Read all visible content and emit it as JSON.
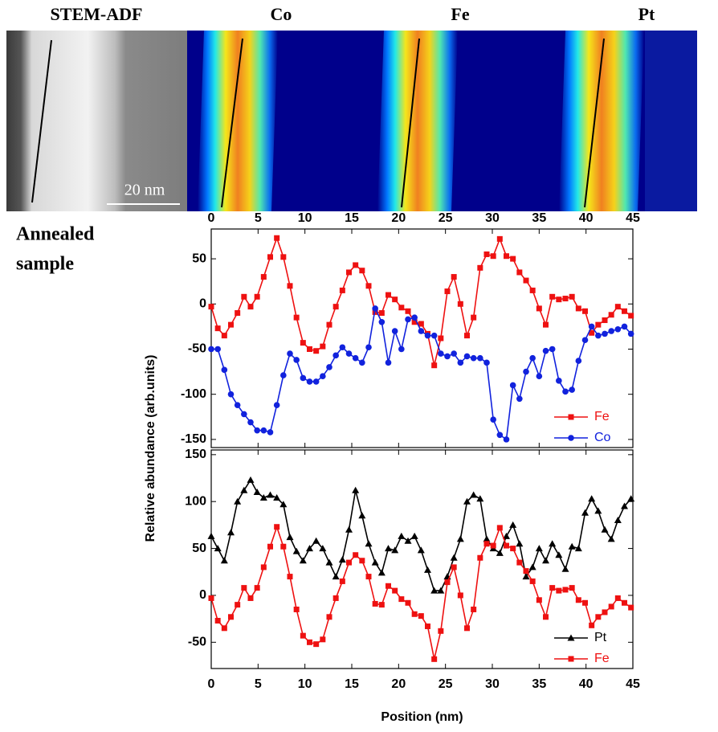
{
  "images": {
    "labels": [
      "STEM-ADF",
      "Co",
      "Fe",
      "Pt"
    ],
    "scale_bar": "20 nm",
    "sample_label": [
      "Annealed",
      "sample"
    ]
  },
  "chart_data": [
    {
      "type": "line",
      "ylabel": "Relative abundance (arb.units)",
      "x": [
        0,
        0.7,
        1.4,
        2.1,
        2.8,
        3.5,
        4.2,
        4.9,
        5.6,
        6.3,
        7,
        7.7,
        8.4,
        9.1,
        9.8,
        10.5,
        11.2,
        11.9,
        12.6,
        13.3,
        14,
        14.7,
        15.4,
        16.1,
        16.8,
        17.5,
        18.2,
        18.9,
        19.6,
        20.3,
        21,
        21.7,
        22.4,
        23.1,
        23.8,
        24.5,
        25.2,
        25.9,
        26.6,
        27.3,
        28,
        28.7,
        29.4,
        30.1,
        30.8,
        31.5,
        32.2,
        32.9,
        33.6,
        34.3,
        35,
        35.7,
        36.4,
        37.1,
        37.8,
        38.5,
        39.2,
        39.9,
        40.6,
        41.3,
        42,
        42.7,
        43.4,
        44.1,
        44.8
      ],
      "series": [
        {
          "name": "Fe",
          "color": "#ee1111",
          "marker": "square",
          "values": [
            -3,
            -27,
            -35,
            -23,
            -10,
            8,
            -3,
            8,
            30,
            52,
            73,
            52,
            20,
            -15,
            -43,
            -50,
            -52,
            -47,
            -23,
            -3,
            15,
            35,
            43,
            37,
            20,
            -9,
            -10,
            10,
            5,
            -4,
            -8,
            -20,
            -22,
            -33,
            -68,
            -38,
            14,
            30,
            0,
            -35,
            -15,
            40,
            55,
            53,
            72,
            53,
            50,
            35,
            26,
            15,
            -5,
            -23,
            8,
            5,
            6,
            8,
            -5,
            -8,
            -32,
            -23,
            -18,
            -12,
            -3,
            -8,
            -13
          ]
        },
        {
          "name": "Co",
          "color": "#1122dd",
          "marker": "circle",
          "values": [
            -50,
            -50,
            -73,
            -100,
            -112,
            -122,
            -131,
            -140,
            -140,
            -142,
            -112,
            -79,
            -55,
            -62,
            -82,
            -86,
            -86,
            -80,
            -70,
            -57,
            -48,
            -55,
            -60,
            -65,
            -48,
            -5,
            -20,
            -65,
            -30,
            -50,
            -17,
            -15,
            -30,
            -35,
            -35,
            -55,
            -58,
            -55,
            -65,
            -58,
            -60,
            -60,
            -65,
            -128,
            -145,
            -150,
            -90,
            -105,
            -75,
            -60,
            -80,
            -52,
            -50,
            -85,
            -97,
            -95,
            -63,
            -40,
            -25,
            -35,
            -33,
            -30,
            -28,
            -25,
            -33
          ]
        }
      ],
      "xlim": [
        0,
        45
      ],
      "xticks": [
        0,
        5,
        10,
        15,
        20,
        25,
        30,
        35,
        40,
        45
      ],
      "xtick_labels": "top",
      "ylim": [
        -159,
        83
      ],
      "yticks": [
        -150,
        -100,
        -50,
        0,
        50
      ],
      "legend": "lower right"
    },
    {
      "type": "line",
      "xlabel": "Position (nm)",
      "x": [
        0,
        0.7,
        1.4,
        2.1,
        2.8,
        3.5,
        4.2,
        4.9,
        5.6,
        6.3,
        7,
        7.7,
        8.4,
        9.1,
        9.8,
        10.5,
        11.2,
        11.9,
        12.6,
        13.3,
        14,
        14.7,
        15.4,
        16.1,
        16.8,
        17.5,
        18.2,
        18.9,
        19.6,
        20.3,
        21,
        21.7,
        22.4,
        23.1,
        23.8,
        24.5,
        25.2,
        25.9,
        26.6,
        27.3,
        28,
        28.7,
        29.4,
        30.1,
        30.8,
        31.5,
        32.2,
        32.9,
        33.6,
        34.3,
        35,
        35.7,
        36.4,
        37.1,
        37.8,
        38.5,
        39.2,
        39.9,
        40.6,
        41.3,
        42,
        42.7,
        43.4,
        44.1,
        44.8
      ],
      "series": [
        {
          "name": "Pt",
          "color": "#000000",
          "marker": "triangle",
          "values": [
            63,
            50,
            37,
            67,
            100,
            112,
            123,
            110,
            104,
            107,
            104,
            97,
            62,
            47,
            37,
            50,
            58,
            50,
            35,
            20,
            38,
            70,
            112,
            85,
            55,
            35,
            24,
            50,
            48,
            63,
            58,
            63,
            48,
            27,
            5,
            5,
            20,
            40,
            60,
            100,
            107,
            103,
            60,
            50,
            45,
            63,
            75,
            55,
            20,
            30,
            50,
            37,
            55,
            43,
            28,
            52,
            50,
            88,
            103,
            90,
            70,
            60,
            80,
            95,
            103
          ]
        },
        {
          "name": "Fe",
          "color": "#ee1111",
          "marker": "square",
          "values": [
            -3,
            -27,
            -35,
            -23,
            -10,
            8,
            -3,
            8,
            30,
            52,
            73,
            52,
            20,
            -15,
            -43,
            -50,
            -52,
            -47,
            -23,
            -3,
            15,
            35,
            43,
            37,
            20,
            -9,
            -10,
            10,
            5,
            -4,
            -8,
            -20,
            -22,
            -33,
            -68,
            -38,
            14,
            30,
            0,
            -35,
            -15,
            40,
            55,
            53,
            72,
            53,
            50,
            35,
            26,
            15,
            -5,
            -23,
            8,
            5,
            6,
            8,
            -5,
            -8,
            -32,
            -23,
            -18,
            -12,
            -3,
            -8,
            -13
          ]
        }
      ],
      "xlim": [
        0,
        45
      ],
      "xticks": [
        0,
        5,
        10,
        15,
        20,
        25,
        30,
        35,
        40,
        45
      ],
      "xtick_labels": "bottom",
      "ylim": [
        -78,
        155
      ],
      "yticks": [
        -50,
        0,
        50,
        100,
        150
      ],
      "legend": "lower right"
    }
  ]
}
